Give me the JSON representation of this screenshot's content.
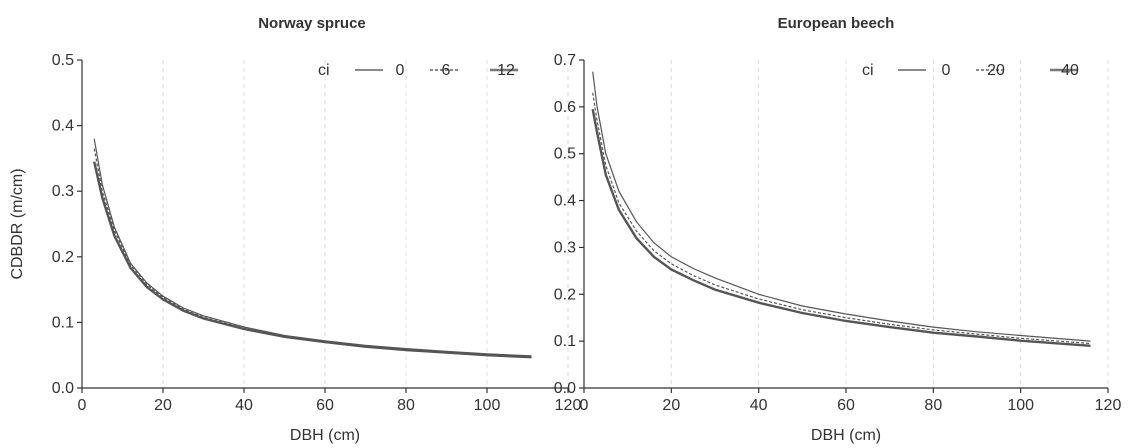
{
  "chart_data": [
    {
      "type": "line",
      "title": "Norway spruce",
      "xlabel": "DBH (cm)",
      "ylabel": "CDBDR (m/cm)",
      "xlim": [
        0,
        120
      ],
      "ylim": [
        0.0,
        0.5
      ],
      "xticks": [
        "0",
        "20",
        "40",
        "60",
        "80",
        "100",
        "120"
      ],
      "yticks": [
        "0.0",
        "0.1",
        "0.2",
        "0.3",
        "0.4",
        "0.5"
      ],
      "grid": "vertical dashed",
      "legend": {
        "title": "ci",
        "placement": "top-right"
      },
      "series": [
        {
          "name": "0",
          "style": "solid-thin",
          "color": "#444444",
          "x": [
            3,
            5,
            8,
            12,
            16,
            20,
            25,
            30,
            40,
            50,
            60,
            70,
            80,
            90,
            100,
            111
          ],
          "y": [
            0.38,
            0.31,
            0.245,
            0.19,
            0.16,
            0.14,
            0.122,
            0.11,
            0.093,
            0.08,
            0.072,
            0.065,
            0.06,
            0.056,
            0.052,
            0.049
          ]
        },
        {
          "name": "6",
          "style": "dashed",
          "color": "#444444",
          "x": [
            3,
            5,
            8,
            12,
            16,
            20,
            25,
            30,
            40,
            50,
            60,
            70,
            80,
            90,
            100,
            111
          ],
          "y": [
            0.365,
            0.3,
            0.24,
            0.188,
            0.158,
            0.138,
            0.12,
            0.108,
            0.091,
            0.079,
            0.071,
            0.064,
            0.059,
            0.055,
            0.051,
            0.048
          ]
        },
        {
          "name": "12",
          "style": "solid-thick",
          "color": "#777777",
          "x": [
            3,
            5,
            8,
            12,
            16,
            20,
            25,
            30,
            40,
            50,
            60,
            70,
            80,
            90,
            100,
            111
          ],
          "y": [
            0.345,
            0.29,
            0.232,
            0.183,
            0.154,
            0.135,
            0.118,
            0.106,
            0.09,
            0.078,
            0.07,
            0.063,
            0.058,
            0.054,
            0.05,
            0.047
          ]
        }
      ]
    },
    {
      "type": "line",
      "title": "European beech",
      "xlabel": "DBH (cm)",
      "ylabel": "",
      "xlim": [
        0,
        120
      ],
      "ylim": [
        0.0,
        0.7
      ],
      "xticks": [
        "0",
        "20",
        "40",
        "60",
        "80",
        "100",
        "120"
      ],
      "yticks": [
        "0.0",
        "0.1",
        "0.2",
        "0.3",
        "0.4",
        "0.5",
        "0.6",
        "0.7"
      ],
      "grid": "vertical dashed",
      "legend": {
        "title": "ci",
        "placement": "top-right"
      },
      "series": [
        {
          "name": "0",
          "style": "solid-thin",
          "color": "#444444",
          "x": [
            2,
            3,
            5,
            8,
            12,
            16,
            20,
            25,
            30,
            40,
            50,
            60,
            70,
            80,
            90,
            100,
            116
          ],
          "y": [
            0.675,
            0.6,
            0.5,
            0.42,
            0.355,
            0.31,
            0.28,
            0.255,
            0.235,
            0.2,
            0.175,
            0.158,
            0.143,
            0.13,
            0.12,
            0.112,
            0.1
          ]
        },
        {
          "name": "20",
          "style": "dashed",
          "color": "#444444",
          "x": [
            2,
            3,
            5,
            8,
            12,
            16,
            20,
            25,
            30,
            40,
            50,
            60,
            70,
            80,
            90,
            100,
            116
          ],
          "y": [
            0.63,
            0.57,
            0.475,
            0.395,
            0.335,
            0.293,
            0.265,
            0.24,
            0.22,
            0.19,
            0.167,
            0.15,
            0.136,
            0.124,
            0.115,
            0.106,
            0.095
          ]
        },
        {
          "name": "40",
          "style": "solid-thick",
          "color": "#777777",
          "x": [
            2,
            3,
            5,
            8,
            12,
            16,
            20,
            25,
            30,
            40,
            50,
            60,
            70,
            80,
            90,
            100,
            116
          ],
          "y": [
            0.595,
            0.545,
            0.455,
            0.38,
            0.32,
            0.28,
            0.253,
            0.23,
            0.21,
            0.182,
            0.16,
            0.143,
            0.13,
            0.118,
            0.11,
            0.101,
            0.09
          ]
        }
      ]
    }
  ]
}
